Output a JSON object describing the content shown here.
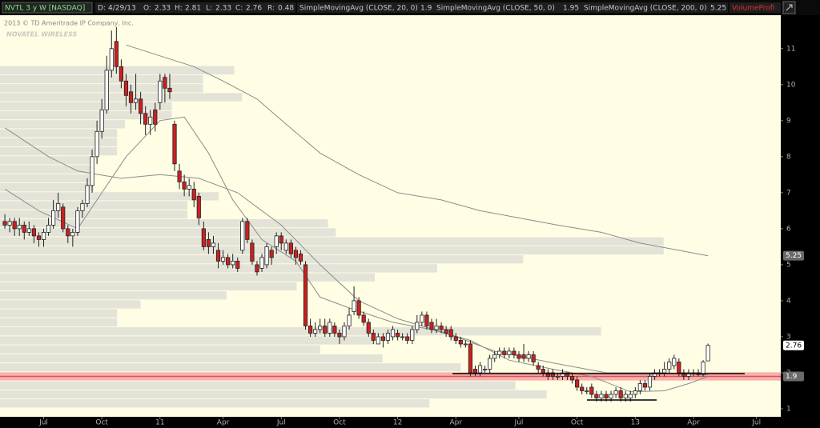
{
  "header": {
    "symbol": "NVTL 3 y W [NASDAQ]",
    "date_label": "D:",
    "date": "4/29/13",
    "open_label": "O:",
    "high_label": "H:",
    "low_label": "L:",
    "close_label": "C:",
    "range_label": "R:",
    "range": 0.48,
    "study": "VolumeProfi"
  },
  "copyright": "2013 © TD Ameritrade IP Company, Inc.",
  "watermark": "NOVATEL WIRELESS",
  "chart_data": {
    "type": "candlestick",
    "up_color": "#ffffff",
    "down_color": "#cc2020",
    "open": [
      6.2,
      6.1,
      6.2,
      6.0,
      6.1,
      5.9,
      6.0,
      5.8,
      5.7,
      5.9,
      6.1,
      6.5,
      6.6,
      6.0,
      5.8,
      5.9,
      6.5,
      6.7,
      7.2,
      8.0,
      8.7,
      9.3,
      10.4,
      11.2,
      10.5,
      10.1,
      9.8,
      9.5,
      9.6,
      9.2,
      8.9,
      9.3,
      9.5,
      10.2,
      9.9,
      8.9,
      7.6,
      7.3,
      7.1,
      7.1,
      6.9,
      6.0,
      5.7,
      5.5,
      5.4,
      5.1,
      5.2,
      5.0,
      5.1,
      5.4,
      6.2,
      5.6,
      5.0,
      4.9,
      5.0,
      5.4,
      5.5,
      5.8,
      5.4,
      5.6,
      5.4,
      5.3,
      5.0,
      3.3,
      3.1,
      3.2,
      3.3,
      3.1,
      3.3,
      3.1,
      3.0,
      3.3,
      3.7,
      4.0,
      3.6,
      3.4,
      3.1,
      2.8,
      3.0,
      2.9,
      3.0,
      3.1,
      3.0,
      3.0,
      2.9,
      3.2,
      3.4,
      3.6,
      3.4,
      3.2,
      3.3,
      3.2,
      3.2,
      3.0,
      2.9,
      2.8,
      2.8,
      2.1,
      2.0,
      2.1,
      2.1,
      2.4,
      2.5,
      2.6,
      2.5,
      2.6,
      2.5,
      2.5,
      2.4,
      2.5,
      2.2,
      2.1,
      2.0,
      2.0,
      1.9,
      1.9,
      2.0,
      1.9,
      1.8,
      1.6,
      1.5,
      1.6,
      1.4,
      1.3,
      1.4,
      1.3,
      1.4,
      1.5,
      1.3,
      1.3,
      1.4,
      1.5,
      1.7,
      1.6,
      1.9,
      2.0,
      2.0,
      2.1,
      2.2,
      2.3,
      2.0,
      1.9,
      2.0,
      2.0,
      1.95,
      2.33
    ],
    "high": [
      6.4,
      6.3,
      6.3,
      6.3,
      6.2,
      6.2,
      6.1,
      5.9,
      6.0,
      6.3,
      6.8,
      7.0,
      6.7,
      6.1,
      6.0,
      6.6,
      6.8,
      7.4,
      8.2,
      9.0,
      9.6,
      10.8,
      11.5,
      11.6,
      10.7,
      10.3,
      10.0,
      10.3,
      9.8,
      9.4,
      9.3,
      9.5,
      10.3,
      10.3,
      10.3,
      9.0,
      7.8,
      7.5,
      7.4,
      7.3,
      7.0,
      6.2,
      5.9,
      5.8,
      5.6,
      5.4,
      5.3,
      5.3,
      5.2,
      6.3,
      6.3,
      5.7,
      5.1,
      5.3,
      5.6,
      5.5,
      5.9,
      5.9,
      5.7,
      5.7,
      5.5,
      5.4,
      5.1,
      3.5,
      3.4,
      3.5,
      3.5,
      3.5,
      3.4,
      3.2,
      3.4,
      3.8,
      4.4,
      4.1,
      3.7,
      3.5,
      3.2,
      3.1,
      3.1,
      3.2,
      3.3,
      3.2,
      3.1,
      3.1,
      3.3,
      3.6,
      3.7,
      3.7,
      3.5,
      3.5,
      3.4,
      3.3,
      3.3,
      3.1,
      3.0,
      2.9,
      2.9,
      2.2,
      2.3,
      2.2,
      2.5,
      2.6,
      2.7,
      2.7,
      2.7,
      2.7,
      2.6,
      2.8,
      2.6,
      2.6,
      2.3,
      2.2,
      2.1,
      2.1,
      2.0,
      2.1,
      2.0,
      2.0,
      1.9,
      1.7,
      1.6,
      1.7,
      1.5,
      1.5,
      1.5,
      1.5,
      1.6,
      1.6,
      1.5,
      1.5,
      1.6,
      1.8,
      1.8,
      2.0,
      2.1,
      2.1,
      2.3,
      2.4,
      2.5,
      2.4,
      2.1,
      2.1,
      2.1,
      2.1,
      2.35,
      2.81
    ],
    "low": [
      6.0,
      5.9,
      5.8,
      5.8,
      5.7,
      5.8,
      5.6,
      5.5,
      5.5,
      5.8,
      6.0,
      6.3,
      5.9,
      5.6,
      5.5,
      5.8,
      6.3,
      6.6,
      7.0,
      7.8,
      8.5,
      9.2,
      10.2,
      10.3,
      9.9,
      9.4,
      9.2,
      9.3,
      8.9,
      8.6,
      8.6,
      8.7,
      9.3,
      9.5,
      9.6,
      7.6,
      7.1,
      6.9,
      6.9,
      6.6,
      6.1,
      5.4,
      5.3,
      5.3,
      4.9,
      5.0,
      4.9,
      4.9,
      4.8,
      5.3,
      5.6,
      5.0,
      4.7,
      4.8,
      4.9,
      5.0,
      5.3,
      5.4,
      5.3,
      5.2,
      5.0,
      5.0,
      3.2,
      3.0,
      3.0,
      3.1,
      3.0,
      3.0,
      3.0,
      2.8,
      2.9,
      3.2,
      3.6,
      3.5,
      3.3,
      3.0,
      2.8,
      2.8,
      2.7,
      2.8,
      2.9,
      2.9,
      2.9,
      2.8,
      2.8,
      3.1,
      3.3,
      3.2,
      3.1,
      3.1,
      3.1,
      3.0,
      2.9,
      2.8,
      2.7,
      2.7,
      1.9,
      1.9,
      1.9,
      2.0,
      2.0,
      2.3,
      2.4,
      2.4,
      2.4,
      2.4,
      2.3,
      2.3,
      2.3,
      2.2,
      2.0,
      1.9,
      1.8,
      1.8,
      1.8,
      1.8,
      1.8,
      1.7,
      1.5,
      1.4,
      1.4,
      1.3,
      1.2,
      1.2,
      1.2,
      1.2,
      1.3,
      1.2,
      1.2,
      1.2,
      1.3,
      1.4,
      1.5,
      1.5,
      1.8,
      1.9,
      1.9,
      2.0,
      2.1,
      1.9,
      1.8,
      1.8,
      1.9,
      1.9,
      1.9,
      2.33
    ],
    "close": [
      6.1,
      6.2,
      6.0,
      6.1,
      5.9,
      6.0,
      5.8,
      5.7,
      5.9,
      6.1,
      6.5,
      6.7,
      6.0,
      5.8,
      5.9,
      6.5,
      6.7,
      7.2,
      8.0,
      8.7,
      9.3,
      10.4,
      11.0,
      10.5,
      10.1,
      9.7,
      9.5,
      9.6,
      9.2,
      8.9,
      9.1,
      8.9,
      10.1,
      9.9,
      9.8,
      7.8,
      7.3,
      7.1,
      7.2,
      6.8,
      6.3,
      5.5,
      5.5,
      5.6,
      5.1,
      5.2,
      5.0,
      5.1,
      4.9,
      6.2,
      5.7,
      5.1,
      4.8,
      5.2,
      5.5,
      5.2,
      5.8,
      5.6,
      5.6,
      5.3,
      5.2,
      5.1,
      3.3,
      3.1,
      3.2,
      3.3,
      3.1,
      3.4,
      3.1,
      3.0,
      3.3,
      3.6,
      4.0,
      3.6,
      3.4,
      3.1,
      2.9,
      3.0,
      2.9,
      3.1,
      3.2,
      3.0,
      3.0,
      2.9,
      3.2,
      3.4,
      3.6,
      3.3,
      3.2,
      3.3,
      3.2,
      3.1,
      3.0,
      2.9,
      2.8,
      2.8,
      2.0,
      2.0,
      2.2,
      2.1,
      2.4,
      2.5,
      2.6,
      2.5,
      2.6,
      2.5,
      2.4,
      2.4,
      2.5,
      2.3,
      2.1,
      2.0,
      1.9,
      1.9,
      1.9,
      2.0,
      1.9,
      1.8,
      1.6,
      1.5,
      1.5,
      1.4,
      1.3,
      1.4,
      1.3,
      1.4,
      1.5,
      1.3,
      1.4,
      1.4,
      1.5,
      1.7,
      1.6,
      1.9,
      2.0,
      2.0,
      2.1,
      2.3,
      2.4,
      2.0,
      1.9,
      2.0,
      2.0,
      1.95,
      2.3,
      2.76
    ],
    "lines": [
      {
        "name": "SimpleMovingAvg (CLOSE, 20, 0)",
        "color": "#8c8c8c",
        "last": 1.9,
        "x": [
          0,
          7,
          15,
          20,
          25,
          32,
          37,
          42,
          47,
          53,
          60,
          65,
          71,
          80,
          88,
          96,
          104,
          113,
          121,
          129,
          136,
          141,
          145
        ],
        "values": [
          7.1,
          6.5,
          6.0,
          7.0,
          8.0,
          9.0,
          9.1,
          8.1,
          6.8,
          5.7,
          5.1,
          4.1,
          3.8,
          3.4,
          3.2,
          2.9,
          2.35,
          2.1,
          1.9,
          1.47,
          1.5,
          1.7,
          1.9
        ]
      },
      {
        "name": "SimpleMovingAvg (CLOSE, 50, 0)",
        "color": "#8c8c8c",
        "last": 1.95,
        "x": [
          0,
          9,
          15,
          24,
          32,
          40,
          48,
          57,
          65,
          73,
          81,
          91,
          101,
          114,
          124,
          134,
          145
        ],
        "values": [
          8.8,
          8.0,
          7.6,
          7.4,
          7.5,
          7.4,
          7.0,
          6.1,
          5.0,
          4.0,
          3.5,
          3.1,
          2.6,
          2.25,
          2.0,
          2.0,
          1.95
        ]
      },
      {
        "name": "SimpleMovingAvg (CLOSE, 200, 0)",
        "color": "#8c8c8c",
        "last": 5.25,
        "x": [
          25,
          32,
          39,
          45,
          52,
          58,
          65,
          73,
          81,
          90,
          98,
          106,
          114,
          123,
          131,
          139,
          145
        ],
        "values": [
          11.1,
          10.8,
          10.5,
          10.1,
          9.6,
          8.9,
          8.1,
          7.5,
          7.0,
          6.8,
          6.5,
          6.3,
          6.1,
          5.9,
          5.6,
          5.4,
          5.25
        ]
      }
    ],
    "volume_profile": {
      "color": "#d9d9d4",
      "highlight_color": "#f7a8a8",
      "bin": 0.25,
      "vlim": [
        0,
        100
      ],
      "levels": [
        10.4,
        10.15,
        9.9,
        9.65,
        9.4,
        9.15,
        8.9,
        8.65,
        8.4,
        8.15,
        7.9,
        7.65,
        7.4,
        7.15,
        6.9,
        6.65,
        6.4,
        6.15,
        5.9,
        5.65,
        5.4,
        5.15,
        4.9,
        4.65,
        4.4,
        4.15,
        3.9,
        3.65,
        3.4,
        3.15,
        2.9,
        2.65,
        2.4,
        2.15,
        1.9,
        1.65,
        1.4,
        1.15
      ],
      "values": [
        30,
        26,
        26,
        31,
        22,
        22,
        16,
        15,
        15,
        15,
        12,
        12,
        12,
        12,
        28,
        24,
        24,
        42,
        43,
        85,
        85,
        67,
        56,
        48,
        38,
        29,
        18,
        15,
        15,
        77,
        48,
        41,
        49,
        59,
        100,
        66,
        70,
        55
      ]
    },
    "ylim": [
      0.8,
      11.95
    ],
    "yticks": [
      1,
      2,
      3,
      4,
      5,
      6,
      7,
      8,
      9,
      10,
      11
    ],
    "xlim": [
      -1,
      160
    ],
    "xticks": [
      {
        "value": 8,
        "label": "Jul"
      },
      {
        "value": 20,
        "label": "Oct"
      },
      {
        "value": 32,
        "label": "11"
      },
      {
        "value": 45,
        "label": "Apr"
      },
      {
        "value": 57,
        "label": "Jul"
      },
      {
        "value": 69,
        "label": "Oct"
      },
      {
        "value": 81,
        "label": "12"
      },
      {
        "value": 93,
        "label": "Apr"
      },
      {
        "value": 106,
        "label": "Jul"
      },
      {
        "value": 118,
        "label": "Oct"
      },
      {
        "value": 130,
        "label": "13"
      },
      {
        "value": 142,
        "label": "Apr"
      },
      {
        "value": 155,
        "label": "Jul"
      }
    ]
  }
}
